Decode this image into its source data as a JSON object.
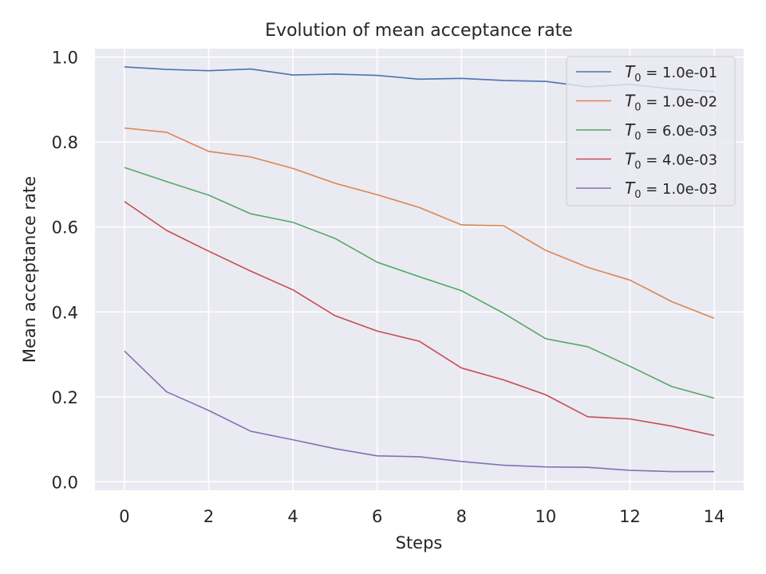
{
  "chart_data": {
    "type": "line",
    "title": "Evolution of mean acceptance rate",
    "xlabel": "Steps",
    "ylabel": "Mean acceptance rate",
    "x": [
      0,
      1,
      2,
      3,
      4,
      5,
      6,
      7,
      8,
      9,
      10,
      11,
      12,
      13,
      14
    ],
    "xlim": [
      -0.7,
      14.7
    ],
    "ylim": [
      -0.02,
      1.02
    ],
    "xticks": [
      0,
      2,
      4,
      6,
      8,
      10,
      12,
      14
    ],
    "yticks": [
      "0.0",
      "0.2",
      "0.4",
      "0.6",
      "0.8",
      "1.0"
    ],
    "grid": true,
    "legend_position": "top-right",
    "series": [
      {
        "name": "T0 = 1.0e-01",
        "legend_sym": "T",
        "legend_sub": "0",
        "legend_rest": " = 1.0e-01",
        "color": "#4c72b0",
        "values": [
          0.977,
          0.971,
          0.968,
          0.972,
          0.958,
          0.96,
          0.957,
          0.948,
          0.95,
          0.945,
          0.943,
          0.93,
          0.936,
          0.925,
          0.919
        ]
      },
      {
        "name": "T0 = 1.0e-02",
        "legend_sym": "T",
        "legend_sub": "0",
        "legend_rest": " = 1.0e-02",
        "color": "#dd8452",
        "values": [
          0.833,
          0.823,
          0.778,
          0.765,
          0.738,
          0.703,
          0.676,
          0.646,
          0.605,
          0.603,
          0.545,
          0.505,
          0.475,
          0.424,
          0.385
        ]
      },
      {
        "name": "T0 = 6.0e-03",
        "legend_sym": "T",
        "legend_sub": "0",
        "legend_rest": " = 6.0e-03",
        "color": "#55a868",
        "values": [
          0.74,
          0.707,
          0.675,
          0.631,
          0.611,
          0.573,
          0.517,
          0.483,
          0.45,
          0.397,
          0.337,
          0.318,
          0.272,
          0.224,
          0.197
        ]
      },
      {
        "name": "T0 = 4.0e-03",
        "legend_sym": "T",
        "legend_sub": "0",
        "legend_rest": " = 4.0e-03",
        "color": "#c44e52",
        "values": [
          0.66,
          0.592,
          0.543,
          0.496,
          0.452,
          0.391,
          0.355,
          0.331,
          0.268,
          0.24,
          0.205,
          0.153,
          0.148,
          0.131,
          0.109
        ]
      },
      {
        "name": "T0 = 1.0e-03",
        "legend_sym": "T",
        "legend_sub": "0",
        "legend_rest": " = 1.0e-03",
        "color": "#8172b3",
        "values": [
          0.308,
          0.212,
          0.168,
          0.119,
          0.099,
          0.078,
          0.061,
          0.059,
          0.048,
          0.039,
          0.035,
          0.034,
          0.027,
          0.024,
          0.024
        ]
      }
    ]
  }
}
